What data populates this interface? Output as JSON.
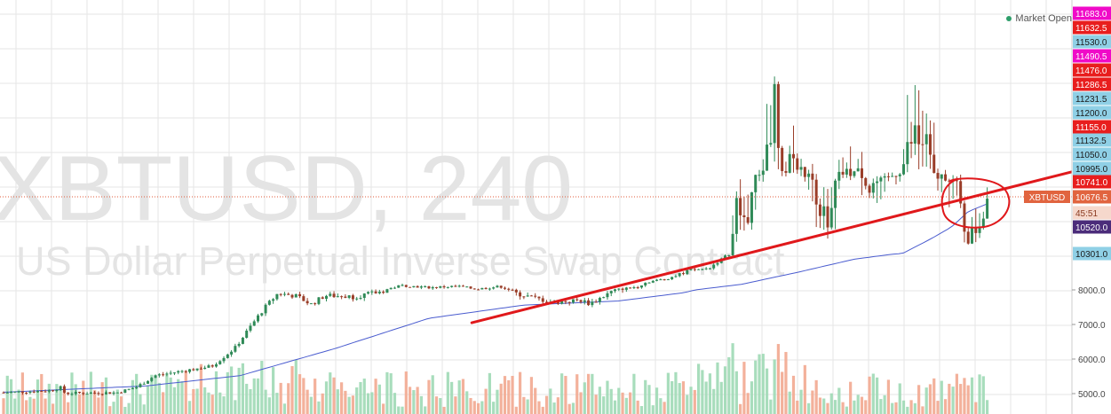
{
  "watermark": {
    "symbol_line": "XBTUSD, 240",
    "description_line": "US Dollar Perpetual Inverse Swap Contract"
  },
  "status": {
    "market": "Market Open"
  },
  "symbol_tag": "XBTUSD",
  "colors": {
    "up": "#2f8a57",
    "down": "#9a3d28",
    "vol_up": "#9ed9b5",
    "vol_down": "#f2a890",
    "ma": "#4a5ccf",
    "trendline": "#e0181b",
    "grid": "#e6e6e6",
    "price_line": "#e15b3b"
  },
  "chart_data": {
    "type": "candlestick",
    "symbol": "XBTUSD",
    "interval": "240",
    "description": "US Dollar Perpetual Inverse Swap Contract",
    "y_axis_ticks": [
      "5000.0",
      "6000.0",
      "7000.0",
      "8000.0"
    ],
    "price_labels": [
      {
        "text": "11683.0",
        "value": 11683.0,
        "color": "#f00ac8"
      },
      {
        "text": "11632.5",
        "value": 11632.5,
        "color": "#e81e1e"
      },
      {
        "text": "11530.0",
        "value": 11530.0,
        "color": "#8fd0e6"
      },
      {
        "text": "11490.5",
        "value": 11490.5,
        "color": "#f00ac8"
      },
      {
        "text": "11476.0",
        "value": 11476.0,
        "color": "#e81e1e"
      },
      {
        "text": "11286.5",
        "value": 11286.5,
        "color": "#e81e1e"
      },
      {
        "text": "11231.5",
        "value": 11231.5,
        "color": "#8fd0e6"
      },
      {
        "text": "11200.0",
        "value": 11200.0,
        "color": "#8fd0e6"
      },
      {
        "text": "11155.0",
        "value": 11155.0,
        "color": "#e81e1e"
      },
      {
        "text": "11132.5",
        "value": 11132.5,
        "color": "#8fd0e6"
      },
      {
        "text": "11050.0",
        "value": 11050.0,
        "color": "#8fd0e6"
      },
      {
        "text": "10995.0",
        "value": 10995.0,
        "color": "#8fd0e6"
      },
      {
        "text": "10741.0",
        "value": 10741.0,
        "color": "#e81e1e"
      },
      {
        "text": "10676.5",
        "value": 10676.5,
        "color": "#e1643f"
      },
      {
        "text": "45:51",
        "value": null,
        "color": "#f6d8cc"
      },
      {
        "text": "10520.0",
        "value": 10520.0,
        "color": "#4b2c7a"
      },
      {
        "text": "10301.0",
        "value": 10301.0,
        "color": "#8fd0e6"
      }
    ],
    "last_price": 10676.5,
    "countdown": "45:51",
    "price_keypoints": [
      [
        0.0,
        5030
      ],
      [
        0.05,
        5090
      ],
      [
        0.06,
        5180
      ],
      [
        0.065,
        5010
      ],
      [
        0.12,
        5030
      ],
      [
        0.14,
        5180
      ],
      [
        0.16,
        5520
      ],
      [
        0.19,
        5660
      ],
      [
        0.22,
        5790
      ],
      [
        0.245,
        6330
      ],
      [
        0.26,
        6900
      ],
      [
        0.275,
        7450
      ],
      [
        0.29,
        7900
      ],
      [
        0.31,
        7820
      ],
      [
        0.325,
        7580
      ],
      [
        0.34,
        7840
      ],
      [
        0.37,
        7800
      ],
      [
        0.4,
        7950
      ],
      [
        0.42,
        8280
      ],
      [
        0.45,
        8150
      ],
      [
        0.48,
        8230
      ],
      [
        0.5,
        8050
      ],
      [
        0.525,
        8220
      ],
      [
        0.54,
        7910
      ],
      [
        0.58,
        7640
      ],
      [
        0.61,
        7700
      ],
      [
        0.62,
        7600
      ],
      [
        0.645,
        7980
      ],
      [
        0.67,
        8200
      ],
      [
        0.68,
        8500
      ],
      [
        0.7,
        8690
      ],
      [
        0.72,
        9100
      ],
      [
        0.725,
        9250
      ],
      [
        0.745,
        9350
      ],
      [
        0.775,
        10620
      ],
      [
        0.785,
        10540
      ],
      [
        0.805,
        11050
      ],
      [
        0.815,
        11240
      ],
      [
        0.823,
        10850
      ],
      [
        0.83,
        11070
      ],
      [
        0.845,
        10920
      ],
      [
        0.86,
        10720
      ],
      [
        0.872,
        10450
      ],
      [
        0.885,
        10900
      ],
      [
        0.905,
        10930
      ],
      [
        0.915,
        10730
      ],
      [
        0.93,
        10730
      ],
      [
        0.96,
        11120
      ],
      [
        0.975,
        11110
      ],
      [
        0.985,
        10820
      ],
      [
        0.998,
        10860
      ],
      [
        1.01,
        10630
      ],
      [
        1.022,
        10420
      ],
      [
        1.04,
        10680
      ]
    ],
    "ma_keypoints": [
      [
        0.0,
        5040
      ],
      [
        0.15,
        5220
      ],
      [
        0.25,
        5520
      ],
      [
        0.35,
        6300
      ],
      [
        0.45,
        7180
      ],
      [
        0.55,
        7560
      ],
      [
        0.65,
        7680
      ],
      [
        0.72,
        7920
      ],
      [
        0.78,
        8350
      ],
      [
        0.84,
        9120
      ],
      [
        0.9,
        9950
      ],
      [
        0.94,
        10260
      ],
      [
        0.98,
        10420
      ],
      [
        1.02,
        10600
      ],
      [
        1.04,
        10640
      ]
    ],
    "trendline": {
      "from": [
        0.495,
        7050
      ],
      "to": [
        1.165,
        10930
      ]
    },
    "annotation": "red-circle"
  }
}
